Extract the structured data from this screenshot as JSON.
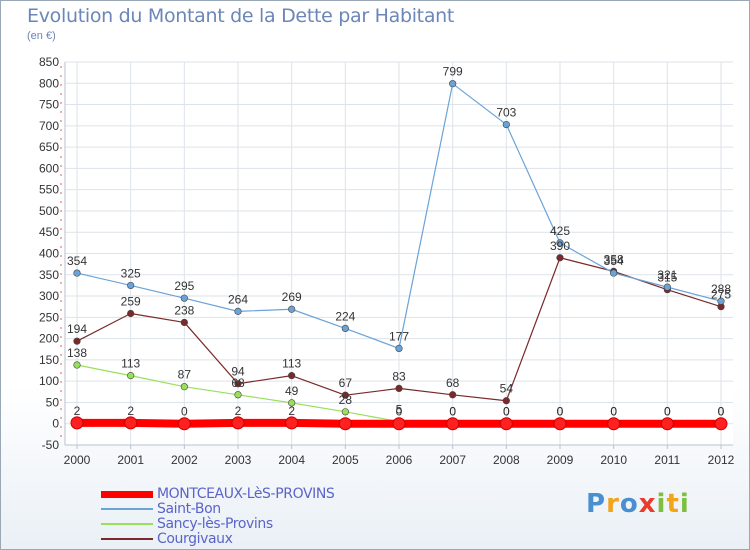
{
  "title": "Evolution du Montant de la Dette par Habitant",
  "subtitle": "(en €)",
  "logo": "Proxiti",
  "colors": {
    "series": [
      "#ff0000",
      "#6aa3d8",
      "#99e05a",
      "#7a2a2a"
    ],
    "grid": "#dde3ea",
    "axis": "#b8c2cc",
    "title": "#6b86b8",
    "legend_text": "#5a64c8"
  },
  "chart_data": {
    "type": "line",
    "title": "Evolution du Montant de la Dette par Habitant",
    "subtitle": "(en €)",
    "xlabel": "",
    "ylabel": "",
    "x": [
      "2000",
      "2001",
      "2002",
      "2003",
      "2004",
      "2005",
      "2006",
      "2007",
      "2008",
      "2009",
      "2010",
      "2011",
      "2012"
    ],
    "ylim": [
      -50,
      850
    ],
    "yticks": [
      -50,
      0,
      50,
      100,
      150,
      200,
      250,
      300,
      350,
      400,
      450,
      500,
      550,
      600,
      650,
      700,
      750,
      800,
      850
    ],
    "grid": true,
    "legend_position": "bottom-left",
    "series": [
      {
        "name": "MONTCEAUX-LèS-PROVINS",
        "values": [
          2,
          2,
          0,
          2,
          2,
          0,
          0,
          0,
          0,
          0,
          0,
          0,
          0
        ],
        "labels": [
          "2",
          "2",
          "0",
          "2",
          "2",
          "",
          "0",
          "0",
          "0",
          "0",
          "0",
          "0",
          "0"
        ]
      },
      {
        "name": "Saint-Bon",
        "values": [
          354,
          325,
          295,
          264,
          269,
          224,
          177,
          799,
          703,
          425,
          354,
          321,
          288
        ],
        "labels": [
          "354",
          "325",
          "295",
          "264",
          "269",
          "224",
          "177",
          "799",
          "703",
          "425",
          "354",
          "321",
          "288"
        ]
      },
      {
        "name": "Sancy-lès-Provins",
        "values": [
          138,
          113,
          87,
          68,
          49,
          28,
          5,
          0,
          0,
          0,
          0,
          0,
          0
        ],
        "labels": [
          "138",
          "113",
          "87",
          "68",
          "49",
          "28",
          "5",
          "0",
          "0",
          "0",
          "0",
          "0",
          "0"
        ]
      },
      {
        "name": "Courgivaux",
        "values": [
          194,
          259,
          238,
          94,
          113,
          67,
          83,
          68,
          54,
          390,
          358,
          315,
          275
        ],
        "labels": [
          "194",
          "259",
          "238",
          "94",
          "113",
          "67",
          "83",
          "68",
          "54",
          "390",
          "358",
          "315",
          "275"
        ]
      }
    ]
  }
}
